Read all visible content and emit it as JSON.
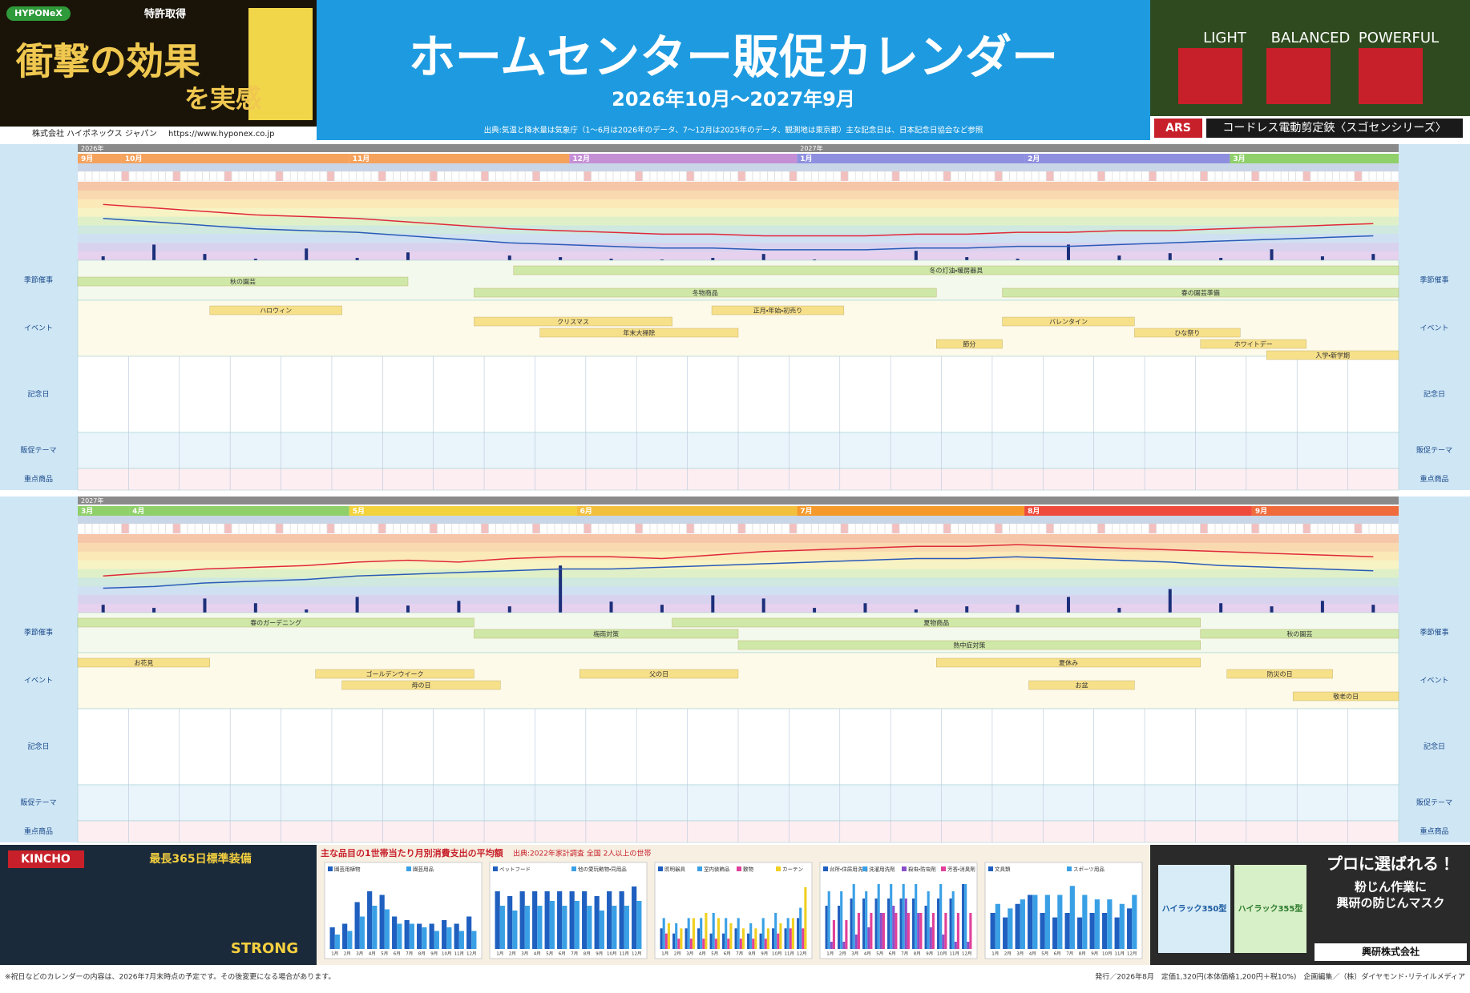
{
  "header": {
    "left_ad": {
      "brand": "HYPONeX",
      "badge": "特許取得",
      "headline": "衝撃の効果",
      "headline2": "を実感",
      "company": "株式会社 ハイポネックス ジャパン",
      "url": "https://www.hyponex.co.jp"
    },
    "title": "ホームセンター販促カレンダー",
    "period": "2026年10月～2027年9月",
    "source": "出典:気温と降水量は気象庁（1～6月は2026年のデータ、7～12月は2025年のデータ、観測地は東京都）主な記念日は、日本記念日協会など参照",
    "right_ad": {
      "labels": [
        "LIGHT",
        "BALANCED",
        "POWERFUL"
      ],
      "brand": "ARS",
      "product": "コードレス電動剪定鋏〈スゴセンシリーズ〉"
    }
  },
  "row_labels": [
    "季節催事",
    "イベント",
    "記念日",
    "販促テーマ",
    "重点商品"
  ],
  "calendars": [
    {
      "years": [
        "2026年",
        "2027年"
      ],
      "months": [
        {
          "label": "9月",
          "color": "#f5a25d"
        },
        {
          "label": "10月",
          "color": "#f5a25d"
        },
        {
          "label": "11月",
          "color": "#f5a25d"
        },
        {
          "label": "12月",
          "color": "#c58fd6"
        },
        {
          "label": "1月",
          "color": "#8f8fe0"
        },
        {
          "label": "2月",
          "color": "#8f8fe0"
        },
        {
          "label": "3月",
          "color": "#8fd06a"
        }
      ],
      "ylim": [
        -5,
        40
      ],
      "rain_ylim": [
        0,
        100
      ],
      "high_temp": [
        27,
        25,
        23,
        21,
        20,
        19,
        17,
        15,
        13,
        12,
        11,
        10,
        10,
        9,
        9,
        9,
        10,
        10,
        11,
        11,
        12,
        12,
        13,
        14,
        15,
        16
      ],
      "low_temp": [
        19,
        17,
        15,
        13,
        12,
        11,
        9,
        7,
        5,
        4,
        3,
        2,
        2,
        1,
        1,
        1,
        2,
        2,
        3,
        3,
        4,
        5,
        6,
        7,
        8,
        9
      ],
      "rain": [
        5,
        20,
        8,
        2,
        15,
        3,
        10,
        0,
        6,
        4,
        2,
        1,
        3,
        8,
        1,
        0,
        12,
        4,
        2,
        20,
        6,
        9,
        3,
        14,
        5,
        8
      ],
      "events": [
        {
          "label": "冬の灯油・暖房器具",
          "color": "#cfe8a8"
        },
        {
          "label": "秋の園芸",
          "color": "#cfe8a8"
        },
        {
          "label": "冬物商品",
          "color": "#cfe8a8"
        },
        {
          "label": "春の園芸準備",
          "color": "#cfe8a8"
        },
        {
          "label": "ハロウィン",
          "color": "#f7e08a"
        },
        {
          "label": "クリスマス",
          "color": "#f7e08a"
        },
        {
          "label": "年末大掃除",
          "color": "#f7e08a"
        },
        {
          "label": "正月・年始・初売り",
          "color": "#f7e08a"
        },
        {
          "label": "節分",
          "color": "#f7e08a"
        },
        {
          "label": "バレンタイン",
          "color": "#f7e08a"
        },
        {
          "label": "ひな祭り",
          "color": "#f7e08a"
        },
        {
          "label": "ホワイトデー",
          "color": "#f7e08a"
        },
        {
          "label": "入学・新学期",
          "color": "#f7e08a"
        }
      ]
    },
    {
      "years": [
        "2027年"
      ],
      "months": [
        {
          "label": "3月",
          "color": "#8fd06a"
        },
        {
          "label": "4月",
          "color": "#8fd06a"
        },
        {
          "label": "5月",
          "color": "#f2d33c"
        },
        {
          "label": "6月",
          "color": "#f2c03c"
        },
        {
          "label": "7月",
          "color": "#f59a2a"
        },
        {
          "label": "8月",
          "color": "#ef4b3c"
        },
        {
          "label": "9月",
          "color": "#ef6b3c"
        }
      ],
      "ylim": [
        -5,
        40
      ],
      "rain_ylim": [
        0,
        100
      ],
      "high_temp": [
        16,
        18,
        20,
        21,
        22,
        24,
        25,
        24,
        26,
        27,
        27,
        26,
        28,
        30,
        31,
        32,
        33,
        33,
        34,
        33,
        32,
        31,
        30,
        29,
        28,
        27
      ],
      "low_temp": [
        9,
        10,
        12,
        13,
        14,
        16,
        17,
        18,
        19,
        20,
        20,
        21,
        22,
        23,
        24,
        25,
        26,
        26,
        27,
        26,
        25,
        24,
        22,
        21,
        20,
        19
      ],
      "rain": [
        10,
        6,
        18,
        12,
        4,
        20,
        9,
        15,
        8,
        60,
        14,
        10,
        22,
        18,
        6,
        12,
        4,
        8,
        10,
        20,
        6,
        30,
        12,
        8,
        15,
        10
      ],
      "events": [
        {
          "label": "春のガーデニング",
          "color": "#cfe8a8"
        },
        {
          "label": "梅雨対策",
          "color": "#cfe8a8"
        },
        {
          "label": "夏物商品",
          "color": "#cfe8a8"
        },
        {
          "label": "熱中症対策",
          "color": "#cfe8a8"
        },
        {
          "label": "秋の園芸",
          "color": "#cfe8a8"
        },
        {
          "label": "お花見",
          "color": "#f7e08a"
        },
        {
          "label": "ゴールデンウイーク",
          "color": "#f7e08a"
        },
        {
          "label": "母の日",
          "color": "#f7e08a"
        },
        {
          "label": "父の日",
          "color": "#f7e08a"
        },
        {
          "label": "夏休み",
          "color": "#f7e08a"
        },
        {
          "label": "お盆",
          "color": "#f7e08a"
        },
        {
          "label": "防災の日",
          "color": "#f7e08a"
        },
        {
          "label": "敬老の日",
          "color": "#f7e08a"
        }
      ]
    }
  ],
  "bottom": {
    "left_ad": {
      "brand": "KINCHO",
      "headline": "最長365日標準装備",
      "product": "STRONG"
    },
    "charts_title": "主な品目の1世帯当たり月別消費支出の平均額",
    "charts_note": "出典:2022年家計調査 全国 2人以上の世帯",
    "month_labels": [
      "1月",
      "2月",
      "3月",
      "4月",
      "5月",
      "6月",
      "7月",
      "8月",
      "9月",
      "10月",
      "11月",
      "12月"
    ],
    "charts": [
      {
        "type": "bar",
        "ylim": [
          0,
          2000
        ],
        "series": [
          {
            "name": "園芸用植物",
            "color": "#1f5fbf",
            "values": [
              600,
              700,
              1300,
              1600,
              1500,
              900,
              800,
              700,
              700,
              800,
              700,
              900
            ]
          },
          {
            "name": "園芸用品",
            "color": "#3aa0e6",
            "values": [
              400,
              500,
              900,
              1200,
              1100,
              700,
              700,
              600,
              500,
              600,
              500,
              500
            ]
          }
        ]
      },
      {
        "type": "bar",
        "ylim": [
          0,
          1500
        ],
        "series": [
          {
            "name": "ペットフード",
            "color": "#1f5fbf",
            "values": [
              1200,
              1100,
              1200,
              1200,
              1200,
              1200,
              1200,
              1200,
              1100,
              1200,
              1200,
              1300
            ]
          },
          {
            "name": "他の愛玩動物・同用品",
            "color": "#3aa0e6",
            "values": [
              900,
              800,
              900,
              900,
              1000,
              900,
              1000,
              900,
              800,
              900,
              900,
              1000
            ]
          }
        ]
      },
      {
        "type": "bar",
        "ylim": [
          0,
          700
        ],
        "series": [
          {
            "name": "照明器具",
            "color": "#1f5fbf",
            "values": [
              200,
              150,
              200,
              200,
              150,
              150,
              200,
              150,
              150,
              200,
              200,
              300
            ]
          },
          {
            "name": "室内装飾品",
            "color": "#3aa0e6",
            "values": [
              300,
              250,
              300,
              300,
              350,
              300,
              300,
              250,
              300,
              350,
              300,
              400
            ]
          },
          {
            "name": "敷物",
            "color": "#e0409a",
            "values": [
              150,
              100,
              100,
              100,
              100,
              100,
              100,
              100,
              100,
              150,
              200,
              200
            ]
          },
          {
            "name": "カーテン",
            "color": "#f0d020",
            "values": [
              250,
              200,
              300,
              350,
              300,
              250,
              200,
              200,
              200,
              250,
              300,
              600
            ]
          }
        ]
      },
      {
        "type": "bar",
        "ylim": [
          0,
          500
        ],
        "series": [
          {
            "name": "台所・住居用洗剤",
            "color": "#1f5fbf",
            "values": [
              300,
              300,
              350,
              350,
              350,
              350,
              350,
              350,
              300,
              350,
              350,
              450
            ]
          },
          {
            "name": "洗濯用洗剤",
            "color": "#3aa0e6",
            "values": [
              400,
              400,
              450,
              400,
              450,
              450,
              450,
              450,
              400,
              450,
              400,
              450
            ]
          },
          {
            "name": "殺虫・防虫剤",
            "color": "#8a4fc8",
            "values": [
              50,
              50,
              100,
              150,
              250,
              300,
              350,
              250,
              150,
              100,
              50,
              50
            ]
          },
          {
            "name": "芳香・消臭剤",
            "color": "#e0409a",
            "values": [
              200,
              200,
              250,
              250,
              250,
              250,
              250,
              250,
              250,
              250,
              250,
              250
            ]
          }
        ]
      },
      {
        "type": "bar",
        "ylim": [
          0,
          800
        ],
        "series": [
          {
            "name": "文具類",
            "color": "#1f5fbf",
            "values": [
              400,
              350,
              500,
              600,
              400,
              350,
              400,
              350,
              400,
              400,
              350,
              450
            ]
          },
          {
            "name": "スポーツ用品",
            "color": "#3aa0e6",
            "values": [
              500,
              450,
              550,
              600,
              600,
              600,
              700,
              600,
              550,
              550,
              500,
              600
            ]
          }
        ]
      }
    ],
    "right_ad": {
      "model1": "ハイラック350型",
      "model2": "ハイラック355型",
      "headline": "プロに選ばれる！",
      "sub": "粉じん作業に",
      "sub2": "興研の防じんマスク",
      "company": "興研株式会社"
    }
  },
  "footer": {
    "note": "※祝日などのカレンダーの内容は、2026年7月末時点の予定です。その後変更になる場合があります。",
    "publish": "発行／2026年8月　定価1,320円(本体価格1,200円＋税10%)　企画編集／（株）ダイヤモンド･リテイルメディア"
  }
}
